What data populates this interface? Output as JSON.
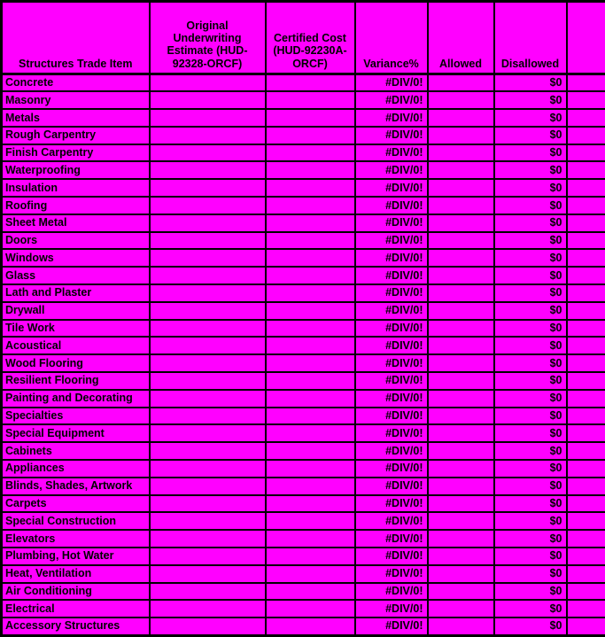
{
  "page": {
    "background_color": "#FF00FF",
    "grid_color": "#000000",
    "text_color": "#000000"
  },
  "table": {
    "headers": [
      "Structures Trade Item",
      "Original Underwriting Estimate (HUD-92328-ORCF)",
      "Certified Cost (HUD-92230A-ORCF)",
      "Variance%",
      "Allowed",
      "Disallowed",
      ""
    ],
    "rows": [
      {
        "item": "Concrete",
        "original": "",
        "certified": "",
        "variance": "#DIV/0!",
        "allowed": "",
        "disallowed": "$0",
        "extra": ""
      },
      {
        "item": "Masonry",
        "original": "",
        "certified": "",
        "variance": "#DIV/0!",
        "allowed": "",
        "disallowed": "$0",
        "extra": ""
      },
      {
        "item": "Metals",
        "original": "",
        "certified": "",
        "variance": "#DIV/0!",
        "allowed": "",
        "disallowed": "$0",
        "extra": ""
      },
      {
        "item": "Rough Carpentry",
        "original": "",
        "certified": "",
        "variance": "#DIV/0!",
        "allowed": "",
        "disallowed": "$0",
        "extra": ""
      },
      {
        "item": "Finish Carpentry",
        "original": "",
        "certified": "",
        "variance": "#DIV/0!",
        "allowed": "",
        "disallowed": "$0",
        "extra": ""
      },
      {
        "item": "Waterproofing",
        "original": "",
        "certified": "",
        "variance": "#DIV/0!",
        "allowed": "",
        "disallowed": "$0",
        "extra": ""
      },
      {
        "item": "Insulation",
        "original": "",
        "certified": "",
        "variance": "#DIV/0!",
        "allowed": "",
        "disallowed": "$0",
        "extra": ""
      },
      {
        "item": "Roofing",
        "original": "",
        "certified": "",
        "variance": "#DIV/0!",
        "allowed": "",
        "disallowed": "$0",
        "extra": ""
      },
      {
        "item": "Sheet Metal",
        "original": "",
        "certified": "",
        "variance": "#DIV/0!",
        "allowed": "",
        "disallowed": "$0",
        "extra": ""
      },
      {
        "item": "Doors",
        "original": "",
        "certified": "",
        "variance": "#DIV/0!",
        "allowed": "",
        "disallowed": "$0",
        "extra": ""
      },
      {
        "item": "Windows",
        "original": "",
        "certified": "",
        "variance": "#DIV/0!",
        "allowed": "",
        "disallowed": "$0",
        "extra": ""
      },
      {
        "item": "Glass",
        "original": "",
        "certified": "",
        "variance": "#DIV/0!",
        "allowed": "",
        "disallowed": "$0",
        "extra": ""
      },
      {
        "item": "Lath and Plaster",
        "original": "",
        "certified": "",
        "variance": "#DIV/0!",
        "allowed": "",
        "disallowed": "$0",
        "extra": ""
      },
      {
        "item": "Drywall",
        "original": "",
        "certified": "",
        "variance": "#DIV/0!",
        "allowed": "",
        "disallowed": "$0",
        "extra": ""
      },
      {
        "item": "Tile Work",
        "original": "",
        "certified": "",
        "variance": "#DIV/0!",
        "allowed": "",
        "disallowed": "$0",
        "extra": ""
      },
      {
        "item": "Acoustical",
        "original": "",
        "certified": "",
        "variance": "#DIV/0!",
        "allowed": "",
        "disallowed": "$0",
        "extra": ""
      },
      {
        "item": "Wood Flooring",
        "original": "",
        "certified": "",
        "variance": "#DIV/0!",
        "allowed": "",
        "disallowed": "$0",
        "extra": ""
      },
      {
        "item": "Resilient Flooring",
        "original": "",
        "certified": "",
        "variance": "#DIV/0!",
        "allowed": "",
        "disallowed": "$0",
        "extra": ""
      },
      {
        "item": "Painting and Decorating",
        "original": "",
        "certified": "",
        "variance": "#DIV/0!",
        "allowed": "",
        "disallowed": "$0",
        "extra": ""
      },
      {
        "item": "Specialties",
        "original": "",
        "certified": "",
        "variance": "#DIV/0!",
        "allowed": "",
        "disallowed": "$0",
        "extra": ""
      },
      {
        "item": "Special Equipment",
        "original": "",
        "certified": "",
        "variance": "#DIV/0!",
        "allowed": "",
        "disallowed": "$0",
        "extra": ""
      },
      {
        "item": "Cabinets",
        "original": "",
        "certified": "",
        "variance": "#DIV/0!",
        "allowed": "",
        "disallowed": "$0",
        "extra": ""
      },
      {
        "item": "Appliances",
        "original": "",
        "certified": "",
        "variance": "#DIV/0!",
        "allowed": "",
        "disallowed": "$0",
        "extra": ""
      },
      {
        "item": "Blinds, Shades, Artwork",
        "original": "",
        "certified": "",
        "variance": "#DIV/0!",
        "allowed": "",
        "disallowed": "$0",
        "extra": ""
      },
      {
        "item": "Carpets",
        "original": "",
        "certified": "",
        "variance": "#DIV/0!",
        "allowed": "",
        "disallowed": "$0",
        "extra": ""
      },
      {
        "item": "Special Construction",
        "original": "",
        "certified": "",
        "variance": "#DIV/0!",
        "allowed": "",
        "disallowed": "$0",
        "extra": ""
      },
      {
        "item": "Elevators",
        "original": "",
        "certified": "",
        "variance": "#DIV/0!",
        "allowed": "",
        "disallowed": "$0",
        "extra": ""
      },
      {
        "item": "Plumbing, Hot Water",
        "original": "",
        "certified": "",
        "variance": "#DIV/0!",
        "allowed": "",
        "disallowed": "$0",
        "extra": ""
      },
      {
        "item": "Heat, Ventilation",
        "original": "",
        "certified": "",
        "variance": "#DIV/0!",
        "allowed": "",
        "disallowed": "$0",
        "extra": ""
      },
      {
        "item": "Air Conditioning",
        "original": "",
        "certified": "",
        "variance": "#DIV/0!",
        "allowed": "",
        "disallowed": "$0",
        "extra": ""
      },
      {
        "item": "Electrical",
        "original": "",
        "certified": "",
        "variance": "#DIV/0!",
        "allowed": "",
        "disallowed": "$0",
        "extra": ""
      },
      {
        "item": "Accessory Structures",
        "original": "",
        "certified": "",
        "variance": "#DIV/0!",
        "allowed": "",
        "disallowed": "$0",
        "extra": ""
      }
    ]
  }
}
